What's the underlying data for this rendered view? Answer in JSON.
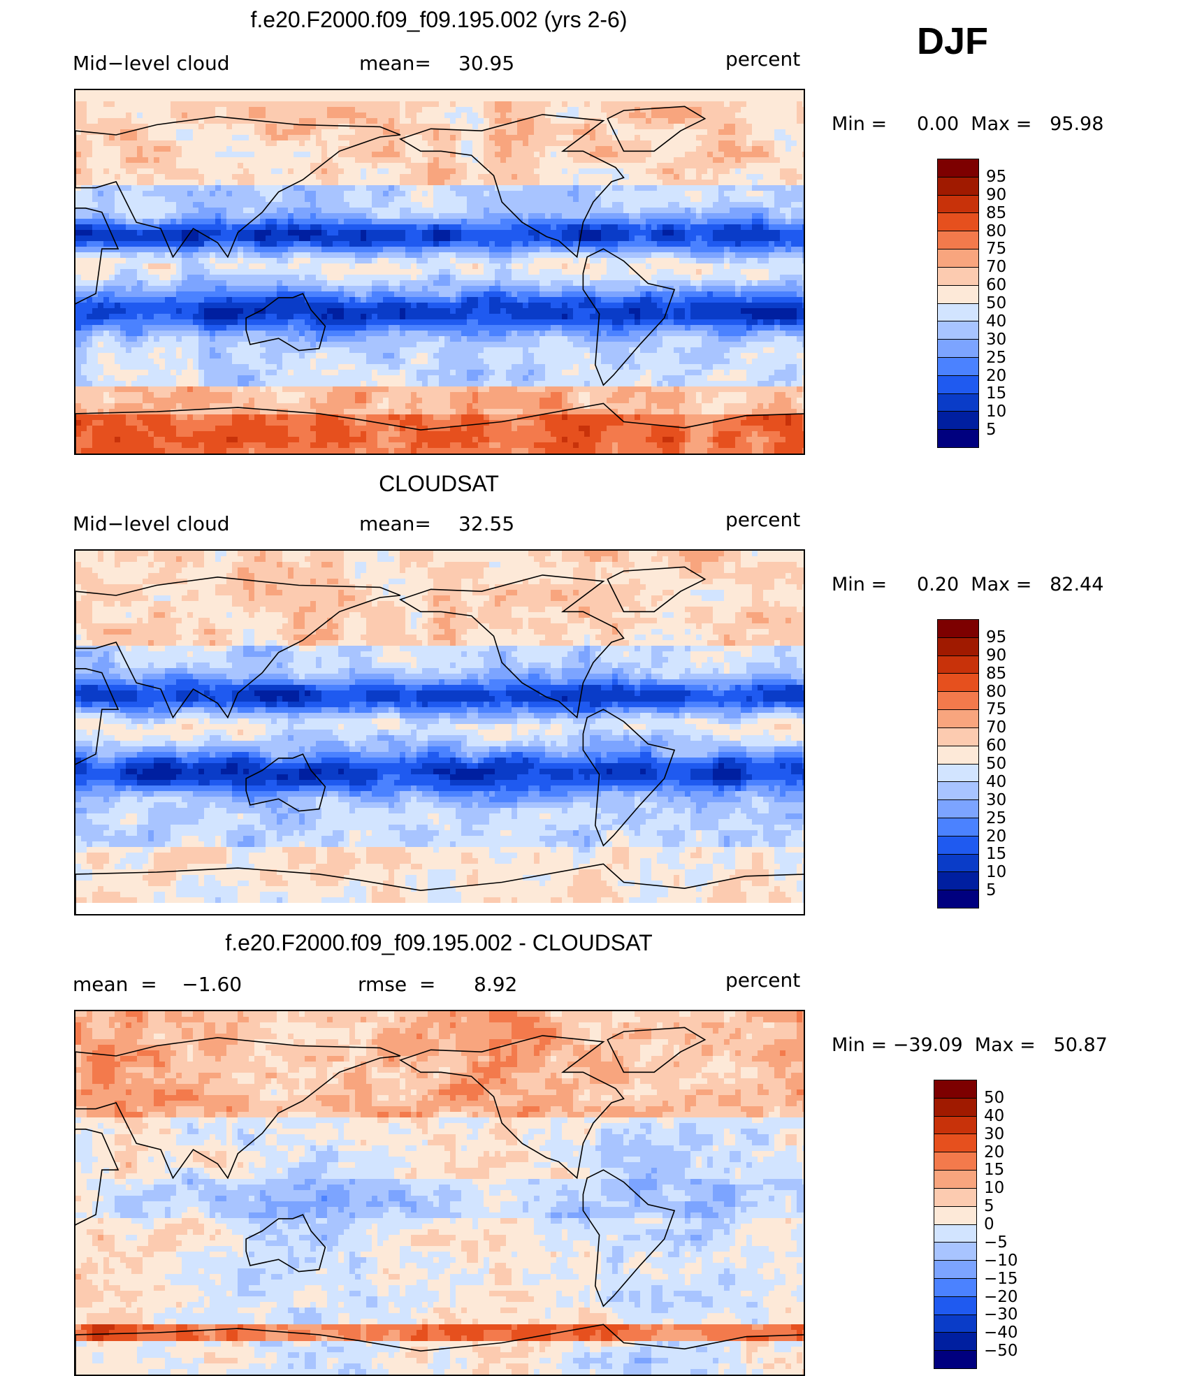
{
  "season": "DJF",
  "units": "percent",
  "palette_levels": [
    "#00007f",
    "#001fa0",
    "#0a3cc8",
    "#1f5af0",
    "#4b82ff",
    "#7ca4ff",
    "#a8c4ff",
    "#d2e4ff",
    "#fde9d8",
    "#fccbb0",
    "#f8a57e",
    "#f37a4c",
    "#e6501e",
    "#c8320a",
    "#a01a00",
    "#7d0000"
  ],
  "panels": [
    {
      "title": "f.e20.F2000.f09_f09.195.002 (yrs 2-6)",
      "left": "Mid−level cloud",
      "center_label": "mean=",
      "center_value": "30.95",
      "right": "percent",
      "minmax": "Min =     0.00  Max =   95.98",
      "colorbar_labels": [
        "95",
        "90",
        "85",
        "80",
        "75",
        "70",
        "60",
        "50",
        "40",
        "30",
        "25",
        "20",
        "15",
        "10",
        "5"
      ]
    },
    {
      "title": "CLOUDSAT",
      "left": "Mid−level cloud",
      "center_label": "mean=",
      "center_value": "32.55",
      "right": "percent",
      "minmax": "Min =     0.20  Max =   82.44",
      "colorbar_labels": [
        "95",
        "90",
        "85",
        "80",
        "75",
        "70",
        "60",
        "50",
        "40",
        "30",
        "25",
        "20",
        "15",
        "10",
        "5"
      ]
    },
    {
      "title": "f.e20.F2000.f09_f09.195.002 - CLOUDSAT",
      "left": "mean  =    −1.60",
      "center_label": "rmse  =",
      "center_value": "8.92",
      "right": "percent",
      "minmax": "Min = −39.09  Max =   50.87",
      "colorbar_labels": [
        "50",
        "40",
        "30",
        "20",
        "15",
        "10",
        "5",
        "0",
        "−5",
        "−10",
        "−15",
        "−20",
        "−30",
        "−40",
        "−50"
      ]
    }
  ],
  "chart_data": [
    {
      "type": "heatmap",
      "title": "f.e20.F2000.f09_f09.195.002 (yrs 2-6)",
      "variable": "Mid−level cloud",
      "units": "percent",
      "mean": 30.95,
      "min": 0.0,
      "max": 95.98,
      "projection": "cylindrical equidistant, Pacific-centered",
      "contour_levels": [
        5,
        10,
        15,
        20,
        25,
        30,
        40,
        50,
        60,
        70,
        75,
        80,
        85,
        90,
        95
      ]
    },
    {
      "type": "heatmap",
      "title": "CLOUDSAT",
      "variable": "Mid−level cloud",
      "units": "percent",
      "mean": 32.55,
      "min": 0.2,
      "max": 82.44,
      "projection": "cylindrical equidistant, Pacific-centered",
      "contour_levels": [
        5,
        10,
        15,
        20,
        25,
        30,
        40,
        50,
        60,
        70,
        75,
        80,
        85,
        90,
        95
      ]
    },
    {
      "type": "heatmap",
      "title": "f.e20.F2000.f09_f09.195.002 - CLOUDSAT",
      "units": "percent",
      "mean": -1.6,
      "rmse": 8.92,
      "min": -39.09,
      "max": 50.87,
      "projection": "cylindrical equidistant, Pacific-centered",
      "contour_levels": [
        -50,
        -40,
        -30,
        -20,
        -15,
        -10,
        -5,
        0,
        5,
        10,
        15,
        20,
        30,
        40,
        50
      ]
    }
  ]
}
